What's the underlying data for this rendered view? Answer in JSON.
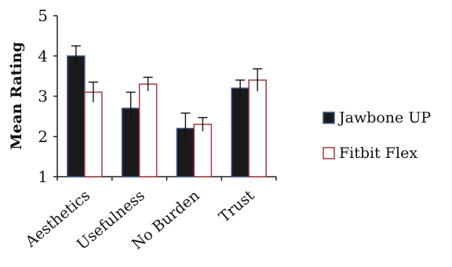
{
  "chart_data": {
    "type": "bar",
    "ylabel": "Mean Rating",
    "xlabel": "",
    "ylim": [
      1,
      5
    ],
    "yticks": [
      1,
      2,
      3,
      4,
      5
    ],
    "categories": [
      "Aesthetics",
      "Usefulness",
      "No Burden",
      "Trust"
    ],
    "series": [
      {
        "name": "Jawbone UP",
        "values": [
          4.0,
          2.7,
          2.2,
          3.2
        ],
        "errors": [
          0.25,
          0.4,
          0.38,
          0.2
        ],
        "fill": "#1a1a1a",
        "stroke": "#3b5a8c"
      },
      {
        "name": "Fitbit Flex",
        "values": [
          3.1,
          3.3,
          2.3,
          3.4
        ],
        "errors": [
          0.25,
          0.17,
          0.17,
          0.28
        ],
        "fill": "#ffffff",
        "stroke": "#a33b3b"
      }
    ],
    "grid": false,
    "legend_position": "right"
  }
}
